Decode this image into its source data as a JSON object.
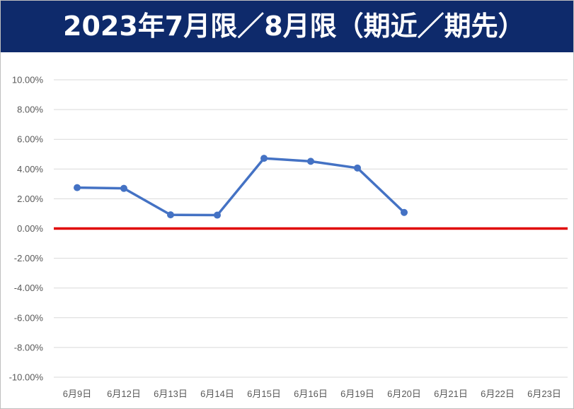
{
  "colors": {
    "title_bg": "#0e2a6b",
    "series": "#4472c4",
    "zero_line": "#e00000",
    "grid": "#d9d9d9",
    "text": "#595959"
  },
  "chart_data": {
    "type": "line",
    "title": "2023年7月限／8月限（期近／期先）",
    "categories": [
      "6月9日",
      "6月12日",
      "6月13日",
      "6月14日",
      "6月15日",
      "6月16日",
      "6月19日",
      "6月20日",
      "6月21日",
      "6月22日",
      "6月23日"
    ],
    "series": [
      {
        "values": [
          2.75,
          2.7,
          0.92,
          0.9,
          4.72,
          4.52,
          4.07,
          1.08,
          null,
          null,
          null
        ]
      }
    ],
    "ylim": [
      -10,
      10
    ],
    "ytick_step": 2,
    "yticks": [
      "10.00%",
      "8.00%",
      "6.00%",
      "4.00%",
      "2.00%",
      "0.00%",
      "-2.00%",
      "-4.00%",
      "-6.00%",
      "-8.00%",
      "-10.00%"
    ],
    "reference_line": 0,
    "grid": true,
    "legend": "none"
  }
}
